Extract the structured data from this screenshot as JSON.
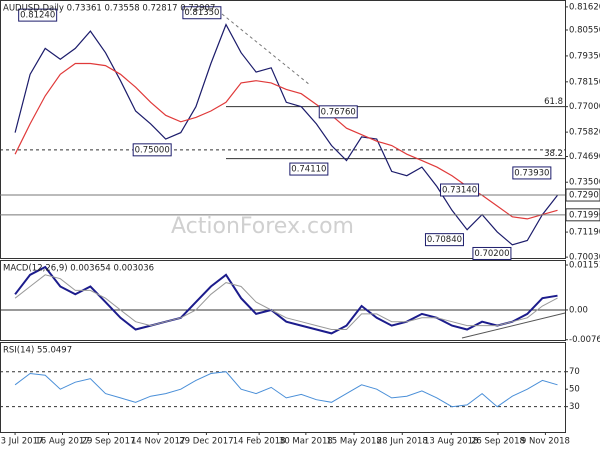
{
  "chart_data": [
    {
      "type": "line",
      "title": "AUDUSD,Daily  0.73361 0.73558 0.72817 0.72907",
      "watermark": "ActionForex.com",
      "x": [
        0,
        2,
        4,
        6,
        8,
        10,
        12,
        14,
        16,
        18,
        20,
        22,
        24,
        26,
        28,
        30,
        32,
        34,
        36,
        38,
        40,
        42,
        44,
        46,
        48,
        50,
        52,
        54,
        56,
        58,
        60,
        62,
        64,
        66,
        68,
        70,
        72
      ],
      "xlim": [
        -2,
        73
      ],
      "ylim": [
        0.6999,
        0.8194
      ],
      "yticks": [
        {
          "value": 0.8162,
          "label": "0.81620"
        },
        {
          "value": 0.8055,
          "label": "0.80550"
        },
        {
          "value": 0.7935,
          "label": "0.79350"
        },
        {
          "value": 0.7815,
          "label": "0.78150"
        },
        {
          "value": 0.77,
          "label": "0.77000"
        },
        {
          "value": 0.7582,
          "label": "0.75820"
        },
        {
          "value": 0.7469,
          "label": "0.74690"
        },
        {
          "value": 0.735,
          "label": "0.73500"
        },
        {
          "value": 0.7119,
          "label": "0.71190"
        },
        {
          "value": 0.7003,
          "label": "0.70030"
        }
      ],
      "series": [
        {
          "color": "#1c1c6b",
          "width": 1.2,
          "values": [
            0.758,
            0.785,
            0.797,
            0.792,
            0.797,
            0.805,
            0.795,
            0.782,
            0.768,
            0.762,
            0.755,
            0.758,
            0.77,
            0.79,
            0.808,
            0.795,
            0.786,
            0.788,
            0.772,
            0.77,
            0.762,
            0.752,
            0.745,
            0.756,
            0.755,
            0.74,
            0.738,
            0.742,
            0.733,
            0.722,
            0.713,
            0.72,
            0.712,
            0.706,
            0.708,
            0.72,
            0.729
          ]
        },
        {
          "color": "#e03a3a",
          "width": 1.2,
          "values": [
            0.748,
            0.762,
            0.775,
            0.785,
            0.79,
            0.79,
            0.789,
            0.785,
            0.779,
            0.772,
            0.766,
            0.763,
            0.765,
            0.768,
            0.772,
            0.781,
            0.782,
            0.781,
            0.778,
            0.776,
            0.771,
            0.766,
            0.76,
            0.757,
            0.754,
            0.752,
            0.748,
            0.745,
            0.742,
            0.738,
            0.733,
            0.729,
            0.724,
            0.719,
            0.718,
            0.72,
            0.722
          ]
        }
      ],
      "hlines": [
        {
          "value": 0.75,
          "dashed": true,
          "from": -2
        },
        {
          "value": 0.77,
          "from": 28,
          "label": "61.8"
        },
        {
          "value": 0.7459,
          "from": 28,
          "label": "38.2"
        }
      ],
      "price_labels": [
        {
          "value": 0.72907,
          "label": "0.72907"
        },
        {
          "value": 0.7199,
          "label": "0.71990"
        }
      ],
      "annotations": [
        {
          "label": "0.81240",
          "x": 3,
          "value": 0.8124
        },
        {
          "label": "0.81350",
          "x": 24.8,
          "value": 0.8135
        },
        {
          "label": "0.75000",
          "x": 18.2,
          "value": 0.75
        },
        {
          "label": "0.76760",
          "x": 42.9,
          "value": 0.7676
        },
        {
          "label": "0.74110",
          "x": 39,
          "value": 0.7411
        },
        {
          "label": "0.73140",
          "x": 59,
          "value": 0.7314
        },
        {
          "label": "0.70840",
          "x": 57,
          "value": 0.7084
        },
        {
          "label": "0.70200",
          "x": 63.3,
          "value": 0.702
        },
        {
          "label": "0.73930",
          "x": 68.6,
          "value": 0.7393
        }
      ]
    },
    {
      "type": "line",
      "title": "MACD(12,26,9) 0.003654 0.003036",
      "x": [
        0,
        2,
        4,
        6,
        8,
        10,
        12,
        14,
        16,
        18,
        20,
        22,
        24,
        26,
        28,
        30,
        32,
        34,
        36,
        38,
        40,
        42,
        44,
        46,
        48,
        50,
        52,
        54,
        56,
        58,
        60,
        62,
        64,
        66,
        68,
        70,
        72
      ],
      "xlim": [
        -2,
        73
      ],
      "ylim": [
        -0.0077,
        0.0128
      ],
      "yticks": [
        {
          "value": 0.011517,
          "label": "0.011517"
        },
        {
          "value": 0,
          "label": "0.00"
        },
        {
          "value": -0.007634,
          "label": "-0.007634"
        }
      ],
      "series": [
        {
          "color": "#1c1c8c",
          "width": 2,
          "values": [
            0.004,
            0.009,
            0.011,
            0.006,
            0.004,
            0.006,
            0.002,
            -0.002,
            -0.005,
            -0.004,
            -0.003,
            -0.002,
            0.002,
            0.006,
            0.009,
            0.003,
            -0.001,
            0.0,
            -0.003,
            -0.004,
            -0.005,
            -0.006,
            -0.004,
            0.001,
            -0.002,
            -0.004,
            -0.003,
            -0.001,
            -0.002,
            -0.004,
            -0.005,
            -0.003,
            -0.004,
            -0.003,
            -0.001,
            0.003,
            0.003654
          ]
        },
        {
          "color": "#999999",
          "width": 1,
          "values": [
            0.003,
            0.006,
            0.009,
            0.008,
            0.005,
            0.005,
            0.003,
            0.0,
            -0.003,
            -0.004,
            -0.003,
            -0.002,
            0.0,
            0.004,
            0.007,
            0.006,
            0.002,
            0.0,
            -0.002,
            -0.003,
            -0.004,
            -0.005,
            -0.005,
            -0.001,
            -0.001,
            -0.003,
            -0.003,
            -0.002,
            -0.002,
            -0.003,
            -0.004,
            -0.004,
            -0.004,
            -0.003,
            -0.002,
            0.001,
            0.003036
          ]
        }
      ],
      "hlines": [
        {
          "value": 0,
          "from": -2
        }
      ]
    },
    {
      "type": "line",
      "title": "RSI(14) 55.0497",
      "x": [
        0,
        2,
        4,
        6,
        8,
        10,
        12,
        14,
        16,
        18,
        20,
        22,
        24,
        26,
        28,
        30,
        32,
        34,
        36,
        38,
        40,
        42,
        44,
        46,
        48,
        50,
        52,
        54,
        56,
        58,
        60,
        62,
        64,
        66,
        68,
        70,
        72
      ],
      "xlim": [
        -2,
        73
      ],
      "ylim": [
        1,
        104
      ],
      "yticks": [
        70,
        50,
        30
      ],
      "series": [
        {
          "color": "#4a8fd8",
          "width": 1,
          "values": [
            55,
            68,
            66,
            50,
            58,
            62,
            45,
            40,
            35,
            42,
            45,
            50,
            60,
            68,
            70,
            50,
            45,
            52,
            40,
            44,
            38,
            35,
            45,
            55,
            50,
            40,
            42,
            48,
            40,
            30,
            32,
            45,
            30,
            42,
            50,
            60,
            55.0497
          ]
        }
      ],
      "hlines": [
        {
          "value": 70,
          "dashed": true,
          "from": -2
        },
        {
          "value": 30,
          "dashed": true,
          "from": -2
        }
      ],
      "xticks": [
        {
          "value": 0,
          "label": "3 Jul 2017"
        },
        {
          "value": 6.3,
          "label": "16 Aug 2017"
        },
        {
          "value": 12.4,
          "label": "29 Sep 2017"
        },
        {
          "value": 19,
          "label": "14 Nov 2017"
        },
        {
          "value": 25.4,
          "label": "29 Dec 2017"
        },
        {
          "value": 32.4,
          "label": "14 Feb 2018"
        },
        {
          "value": 38.6,
          "label": "30 Mar 2018"
        },
        {
          "value": 45,
          "label": "15 May 2018"
        },
        {
          "value": 51.4,
          "label": "28 Jun 2018"
        },
        {
          "value": 57.9,
          "label": "13 Aug 2018"
        },
        {
          "value": 64.1,
          "label": "26 Sep 2018"
        },
        {
          "value": 70.4,
          "label": "9 Nov 2018"
        }
      ]
    }
  ]
}
